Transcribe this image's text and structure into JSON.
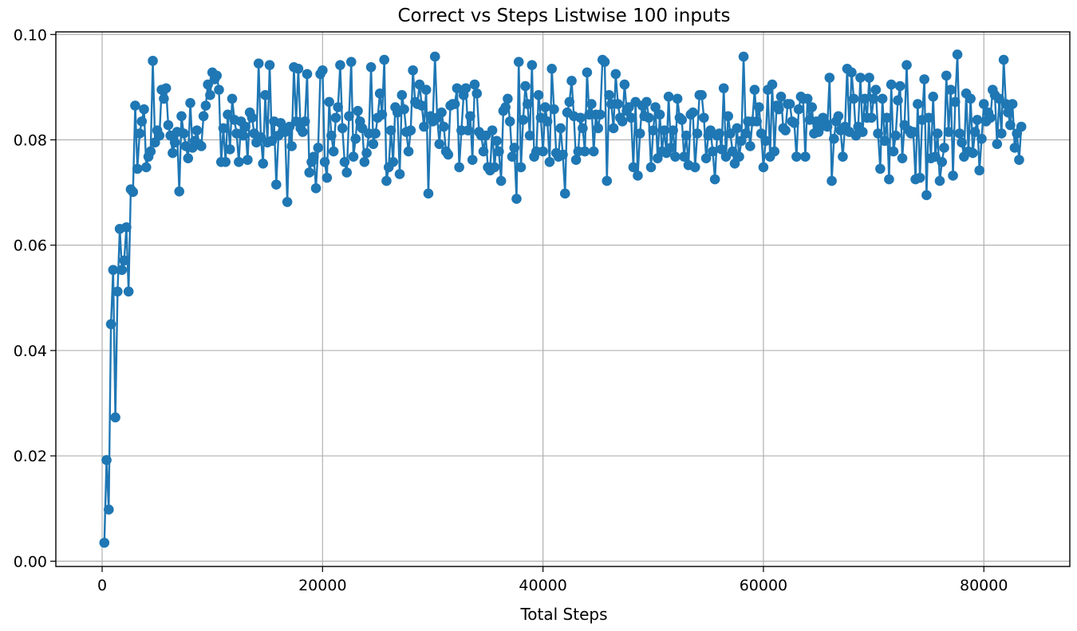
{
  "chart_data": {
    "type": "line",
    "title": "Correct vs Steps Listwise 100 inputs",
    "xlabel": "Total Steps",
    "ylabel": "",
    "xlim": [
      -4200,
      87800
    ],
    "ylim": [
      -0.001,
      0.1005
    ],
    "x_ticks": [
      0,
      20000,
      40000,
      60000,
      80000
    ],
    "x_tick_labels": [
      "0",
      "20000",
      "40000",
      "60000",
      "80000"
    ],
    "y_ticks": [
      0.0,
      0.02,
      0.04,
      0.06,
      0.08,
      0.1
    ],
    "y_tick_labels": [
      "0.00",
      "0.02",
      "0.04",
      "0.06",
      "0.08",
      "0.10"
    ],
    "grid": true,
    "legend": "none",
    "series": [
      {
        "color": "#1f77b4",
        "marker": "circle",
        "x": [
          200,
          400,
          600,
          800,
          1000,
          1200,
          1400,
          1600,
          1800,
          2000,
          2200,
          2400,
          2600,
          2800,
          3000,
          3200,
          3400,
          3600,
          3800,
          4000,
          4200,
          4400,
          4600,
          4800,
          5000,
          5200,
          5400,
          5600,
          5800,
          6000,
          6200,
          6400,
          6600,
          6800,
          7000,
          7200,
          7400,
          7600,
          7800,
          8000,
          8200,
          8400,
          8600,
          8800,
          9000,
          9200,
          9400,
          9600,
          9800,
          10000,
          10200,
          10400,
          10600,
          10800,
          11000,
          11200,
          11400,
          11600,
          11800,
          12000,
          12200,
          12400,
          12600,
          12800,
          13000,
          13200,
          13400,
          13600,
          13800,
          14000,
          14200,
          14400,
          14600,
          14800,
          15000,
          15200,
          15400,
          15600,
          15800,
          16000,
          16200,
          16400,
          16600,
          16800,
          17000,
          17200,
          17400,
          17600,
          17800,
          18000,
          18200,
          18400,
          18600,
          18800,
          19000,
          19200,
          19400,
          19600,
          19800,
          20000,
          20200,
          20400,
          20600,
          20800,
          21000,
          21200,
          21400,
          21600,
          21800,
          22000,
          22200,
          22400,
          22600,
          22800,
          23000,
          23200,
          23400,
          23600,
          23800,
          24000,
          24200,
          24400,
          24600,
          24800,
          25000,
          25200,
          25400,
          25600,
          25800,
          26000,
          26200,
          26400,
          26600,
          26800,
          27000,
          27200,
          27400,
          27600,
          27800,
          28000,
          28200,
          28400,
          28600,
          28800,
          29000,
          29200,
          29400,
          29600,
          29800,
          30000,
          30200,
          30400,
          30600,
          30800,
          31000,
          31200,
          31400,
          31600,
          31800,
          32000,
          32200,
          32400,
          32600,
          32800,
          33000,
          33200,
          33400,
          33600,
          33800,
          34000,
          34200,
          34400,
          34600,
          34800,
          35000,
          35200,
          35400,
          35600,
          35800,
          36000,
          36200,
          36400,
          36600,
          36800,
          37000,
          37200,
          37400,
          37600,
          37800,
          38000,
          38200,
          38400,
          38600,
          38800,
          39000,
          39200,
          39400,
          39600,
          39800,
          40000,
          40200,
          40400,
          40600,
          40800,
          41000,
          41200,
          41400,
          41600,
          41800,
          42000,
          42200,
          42400,
          42600,
          42800,
          43000,
          43200,
          43400,
          43600,
          43800,
          44000,
          44200,
          44400,
          44600,
          44800,
          45000,
          45200,
          45400,
          45600,
          45800,
          46000,
          46200,
          46400,
          46600,
          46800,
          47000,
          47200,
          47400,
          47600,
          47800,
          48000,
          48200,
          48400,
          48600,
          48800,
          49000,
          49200,
          49400,
          49600,
          49800,
          50000,
          50200,
          50400,
          50600,
          50800,
          51000,
          51200,
          51400,
          51600,
          51800,
          52000,
          52200,
          52400,
          52600,
          52800,
          53000,
          53200,
          53400,
          53600,
          53800,
          54000,
          54200,
          54400,
          54600,
          54800,
          55000,
          55200,
          55400,
          55600,
          55800,
          56000,
          56200,
          56400,
          56600,
          56800,
          57000,
          57200,
          57400,
          57600,
          57800,
          58000,
          58200,
          58400,
          58600,
          58800,
          59000,
          59200,
          59400,
          59600,
          59800,
          60000,
          60200,
          60400,
          60600,
          60800,
          61000,
          61200,
          61400,
          61600,
          61800,
          62000,
          62200,
          62400,
          62600,
          62800,
          63000,
          63200,
          63400,
          63600,
          63800,
          64000,
          64200,
          64400,
          64600,
          64800,
          65000,
          65200,
          65400,
          65600,
          65800,
          66000,
          66200,
          66400,
          66600,
          66800,
          67000,
          67200,
          67400,
          67600,
          67800,
          68000,
          68200,
          68400,
          68600,
          68800,
          69000,
          69200,
          69400,
          69600,
          69800,
          70000,
          70200,
          70400,
          70600,
          70800,
          71000,
          71200,
          71400,
          71600,
          71800,
          72000,
          72200,
          72400,
          72600,
          72800,
          73000,
          73200,
          73400,
          73600,
          73800,
          74000,
          74200,
          74400,
          74600,
          74800,
          75000,
          75200,
          75400,
          75600,
          75800,
          76000,
          76200,
          76400,
          76600,
          76800,
          77000,
          77200,
          77400,
          77600,
          77800,
          78000,
          78200,
          78400,
          78600,
          78800,
          79000,
          79200,
          79400,
          79600,
          79800,
          80000,
          80200,
          80400,
          80600,
          80800,
          81000,
          81200,
          81400,
          81600,
          81800,
          82000,
          82200,
          82400,
          82600,
          82800,
          83000,
          83200,
          83400
        ],
        "y": [
          0.0035,
          0.0192,
          0.0098,
          0.045,
          0.0553,
          0.0273,
          0.0512,
          0.0631,
          0.0553,
          0.0571,
          0.0634,
          0.0512,
          0.0706,
          0.0701,
          0.0865,
          0.0745,
          0.0812,
          0.0835,
          0.0858,
          0.0748,
          0.0768,
          0.0778,
          0.095,
          0.0795,
          0.0818,
          0.0808,
          0.0895,
          0.0878,
          0.0898,
          0.0828,
          0.0808,
          0.0775,
          0.0795,
          0.0815,
          0.0702,
          0.0845,
          0.0812,
          0.0788,
          0.0765,
          0.087,
          0.0785,
          0.0798,
          0.0818,
          0.0792,
          0.0788,
          0.0845,
          0.0865,
          0.0905,
          0.0885,
          0.0928,
          0.0915,
          0.0922,
          0.0895,
          0.0758,
          0.0822,
          0.0758,
          0.0848,
          0.0782,
          0.0878,
          0.0838,
          0.0812,
          0.0758,
          0.0835,
          0.0808,
          0.0825,
          0.0762,
          0.0852,
          0.0842,
          0.0812,
          0.0795,
          0.0945,
          0.0805,
          0.0755,
          0.0885,
          0.0795,
          0.0942,
          0.0798,
          0.0835,
          0.0715,
          0.0808,
          0.0832,
          0.0818,
          0.0815,
          0.0682,
          0.0825,
          0.0788,
          0.0938,
          0.0835,
          0.0935,
          0.0822,
          0.0815,
          0.0835,
          0.0925,
          0.0738,
          0.0758,
          0.0768,
          0.0708,
          0.0785,
          0.0925,
          0.0932,
          0.0758,
          0.0728,
          0.0872,
          0.0808,
          0.0778,
          0.0842,
          0.0862,
          0.0942,
          0.0822,
          0.0758,
          0.0738,
          0.0845,
          0.0948,
          0.0768,
          0.0802,
          0.0855,
          0.0835,
          0.0822,
          0.0758,
          0.0775,
          0.0812,
          0.0938,
          0.0792,
          0.0812,
          0.0842,
          0.0888,
          0.0848,
          0.0952,
          0.0722,
          0.0748,
          0.0818,
          0.0758,
          0.0862,
          0.0852,
          0.0735,
          0.0885,
          0.0858,
          0.0815,
          0.0778,
          0.0818,
          0.0932,
          0.0872,
          0.0868,
          0.0905,
          0.0865,
          0.0825,
          0.0895,
          0.0698,
          0.0845,
          0.0835,
          0.0958,
          0.0842,
          0.0792,
          0.0852,
          0.0825,
          0.0778,
          0.0772,
          0.0865,
          0.0868,
          0.0868,
          0.0898,
          0.0748,
          0.0818,
          0.0885,
          0.0898,
          0.0818,
          0.0845,
          0.0762,
          0.0905,
          0.0888,
          0.0815,
          0.0808,
          0.0778,
          0.0808,
          0.0748,
          0.0742,
          0.0818,
          0.0748,
          0.0798,
          0.0778,
          0.0722,
          0.0855,
          0.0862,
          0.0878,
          0.0835,
          0.0768,
          0.0785,
          0.0688,
          0.0948,
          0.0748,
          0.0838,
          0.0902,
          0.0868,
          0.0808,
          0.0942,
          0.0768,
          0.0778,
          0.0885,
          0.0842,
          0.0778,
          0.0862,
          0.0835,
          0.0758,
          0.0935,
          0.0858,
          0.0775,
          0.0768,
          0.0822,
          0.0772,
          0.0698,
          0.0852,
          0.0872,
          0.0912,
          0.0845,
          0.0762,
          0.0778,
          0.0842,
          0.0822,
          0.0778,
          0.0928,
          0.0848,
          0.0868,
          0.0778,
          0.0848,
          0.0822,
          0.0848,
          0.0952,
          0.0948,
          0.0722,
          0.0885,
          0.0868,
          0.0822,
          0.0925,
          0.0868,
          0.0842,
          0.0835,
          0.0905,
          0.0855,
          0.0862,
          0.0842,
          0.0748,
          0.0872,
          0.0732,
          0.0812,
          0.0865,
          0.0845,
          0.0872,
          0.0842,
          0.0748,
          0.0818,
          0.0862,
          0.0765,
          0.0848,
          0.0778,
          0.0818,
          0.0775,
          0.0882,
          0.0785,
          0.0818,
          0.0768,
          0.0878,
          0.0842,
          0.0838,
          0.0768,
          0.0808,
          0.0752,
          0.0848,
          0.0852,
          0.0748,
          0.0812,
          0.0885,
          0.0885,
          0.0842,
          0.0765,
          0.0808,
          0.0818,
          0.0778,
          0.0725,
          0.0808,
          0.0812,
          0.0782,
          0.0898,
          0.0768,
          0.0845,
          0.0812,
          0.0778,
          0.0755,
          0.0822,
          0.0768,
          0.0798,
          0.0958,
          0.0812,
          0.0835,
          0.0788,
          0.0835,
          0.0895,
          0.0835,
          0.0862,
          0.0812,
          0.0748,
          0.0798,
          0.0895,
          0.0768,
          0.0905,
          0.0778,
          0.0865,
          0.0858,
          0.0882,
          0.0822,
          0.0818,
          0.0868,
          0.0868,
          0.0835,
          0.0832,
          0.0768,
          0.0858,
          0.0882,
          0.0878,
          0.0768,
          0.0878,
          0.0838,
          0.0862,
          0.0812,
          0.0835,
          0.0815,
          0.0825,
          0.0842,
          0.0832,
          0.0825,
          0.0918,
          0.0722,
          0.0802,
          0.0835,
          0.0845,
          0.0818,
          0.0768,
          0.0825,
          0.0935,
          0.0815,
          0.0928,
          0.0878,
          0.0808,
          0.0825,
          0.0918,
          0.0815,
          0.0878,
          0.0842,
          0.0918,
          0.0842,
          0.0878,
          0.0895,
          0.0812,
          0.0745,
          0.0878,
          0.0798,
          0.0842,
          0.0725,
          0.0905,
          0.0778,
          0.0808,
          0.0875,
          0.0902,
          0.0765,
          0.0828,
          0.0942,
          0.0818,
          0.0812,
          0.0815,
          0.0725,
          0.0868,
          0.0728,
          0.0838,
          0.0915,
          0.0695,
          0.0842,
          0.0765,
          0.0882,
          0.0768,
          0.0812,
          0.0722,
          0.0758,
          0.0785,
          0.0922,
          0.0815,
          0.0895,
          0.0732,
          0.0872,
          0.0962,
          0.0812,
          0.0795,
          0.0768,
          0.0888,
          0.0778,
          0.0878,
          0.0775,
          0.0815,
          0.0838,
          0.0742,
          0.0802,
          0.0868,
          0.0835,
          0.0852,
          0.0842,
          0.0895,
          0.0885,
          0.0792,
          0.0878,
          0.0812,
          0.0952,
          0.0868,
          0.0852,
          0.0828,
          0.0868,
          0.0785,
          0.0812,
          0.0762,
          0.0825
        ]
      }
    ]
  }
}
